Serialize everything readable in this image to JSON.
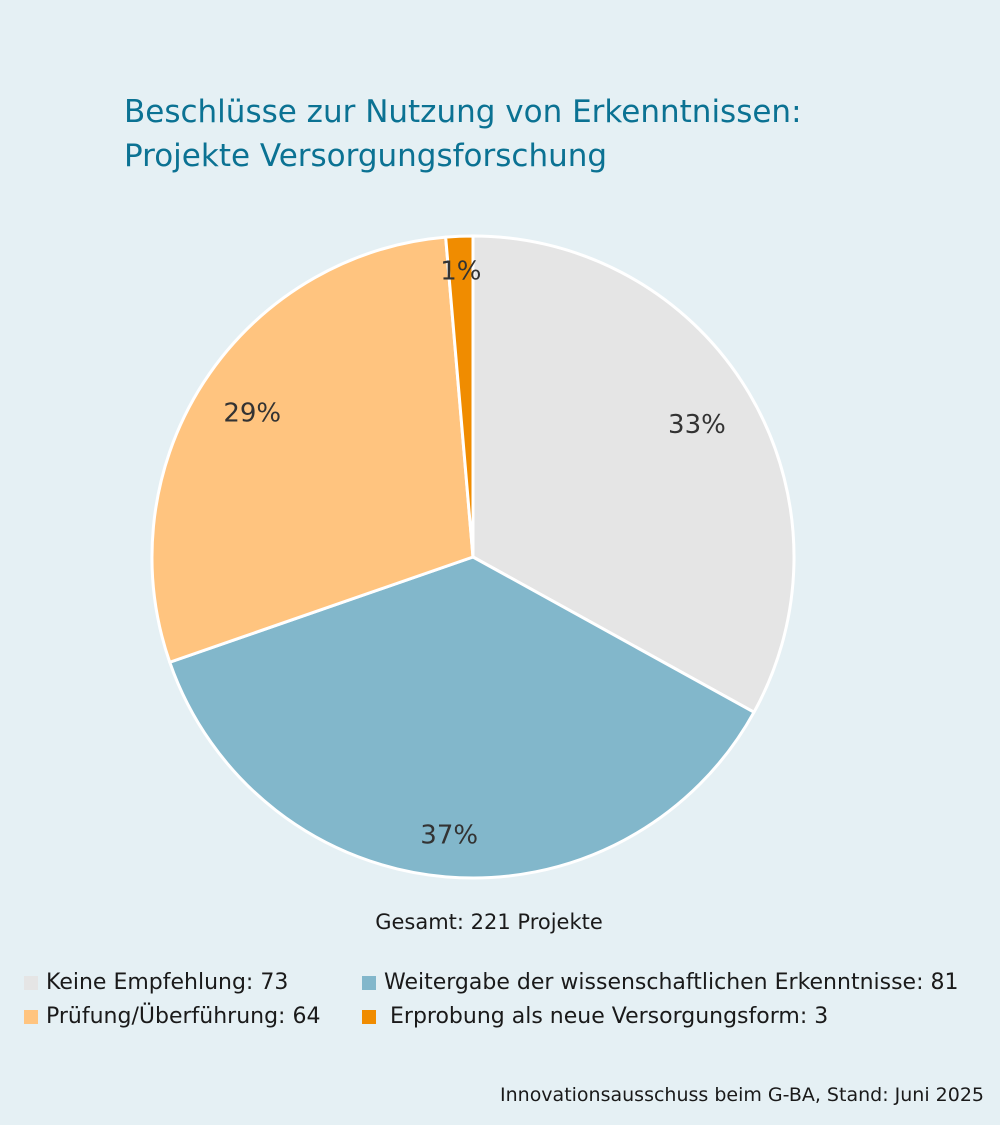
{
  "title": {
    "line1": "Beschlüsse zur Nutzung von Erkenntnissen:",
    "line2": "Projekte Versorgungsforschung"
  },
  "total_label": "Gesamt: 221 Projekte",
  "source": "Innovationsausschuss beim G-BA, Stand: Juni 2025",
  "legend": [
    {
      "label": "Keine Empfehlung: 73",
      "color": "#e5e5e5"
    },
    {
      "label": "Weitergabe der wissenschaftlichen Erkenntnisse: 81",
      "color": "#82b7cb"
    },
    {
      "label": "Prüfung/Überführung: 64",
      "color": "#ffc47f"
    },
    {
      "label": "Erprobung als neue Versorgungsform: 3",
      "color": "#f08c00"
    }
  ],
  "chart_data": {
    "type": "pie",
    "title": "Beschlüsse zur Nutzung von Erkenntnissen: Projekte Versorgungsforschung",
    "categories": [
      "Keine Empfehlung",
      "Weitergabe der wissenschaftlichen Erkenntnisse",
      "Prüfung/Überführung",
      "Erprobung als neue Versorgungsform"
    ],
    "values": [
      73,
      81,
      64,
      3
    ],
    "percent_labels": [
      "33%",
      "37%",
      "29%",
      "1%"
    ],
    "colors": [
      "#e5e5e5",
      "#82b7cb",
      "#ffc47f",
      "#f08c00"
    ],
    "total": 221,
    "start": "12 o'clock, clockwise",
    "legend_position": "bottom"
  }
}
